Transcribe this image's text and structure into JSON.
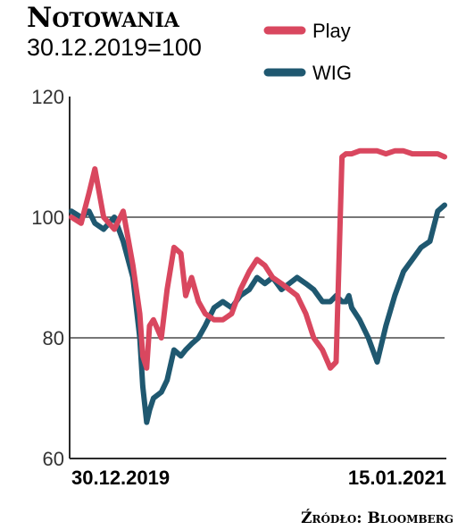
{
  "chart_data": {
    "type": "line",
    "title": "Notowania",
    "subtitle": "30.12.2019=100",
    "source": "Źródło: Bloomberg",
    "ylim": [
      60,
      120
    ],
    "yticks": [
      60,
      80,
      100,
      120
    ],
    "gridlines": [
      80,
      100
    ],
    "x_range": [
      "30.12.2019",
      "15.01.2021"
    ],
    "x_tick_labels": [
      "30.12.2019",
      "15.01.2021"
    ],
    "legend_position": "top-right",
    "colors": {
      "Play": "#d9475f",
      "WIG": "#1f5870"
    },
    "series": [
      {
        "name": "Play",
        "x": [
          "2019-12-30",
          "2020-01-09",
          "2020-01-17",
          "2020-01-23",
          "2020-02-01",
          "2020-02-12",
          "2020-02-21",
          "2020-03-02",
          "2020-03-09",
          "2020-03-12",
          "2020-03-16",
          "2020-03-19",
          "2020-03-23",
          "2020-03-31",
          "2020-04-06",
          "2020-04-13",
          "2020-04-20",
          "2020-04-25",
          "2020-05-01",
          "2020-05-08",
          "2020-05-15",
          "2020-05-24",
          "2020-06-02",
          "2020-06-11",
          "2020-06-20",
          "2020-06-29",
          "2020-07-07",
          "2020-07-15",
          "2020-07-23",
          "2020-08-01",
          "2020-08-09",
          "2020-08-17",
          "2020-08-26",
          "2020-09-03",
          "2020-09-12",
          "2020-09-20",
          "2020-09-26",
          "2020-10-02",
          "2020-10-06",
          "2020-10-09",
          "2020-10-12",
          "2020-10-20",
          "2020-10-29",
          "2020-11-07",
          "2020-11-16",
          "2020-11-25",
          "2020-12-04",
          "2020-12-13",
          "2020-12-22",
          "2020-12-31",
          "2021-01-08",
          "2021-01-15"
        ],
        "values": [
          100,
          99,
          104,
          108,
          100,
          98,
          101,
          92,
          84,
          77,
          75,
          82,
          83,
          80,
          88,
          95,
          94,
          87,
          90,
          86,
          84,
          83,
          83,
          84,
          88,
          91,
          93,
          92,
          90,
          89,
          88,
          87,
          84,
          80,
          78,
          75,
          76,
          110,
          110.5,
          110.5,
          110.5,
          111,
          111,
          111,
          110.5,
          111,
          111,
          110.5,
          110.5,
          110.5,
          110.5,
          110
        ]
      },
      {
        "name": "WIG",
        "x": [
          "2019-12-30",
          "2020-01-09",
          "2020-01-17",
          "2020-01-23",
          "2020-02-01",
          "2020-02-12",
          "2020-02-21",
          "2020-03-02",
          "2020-03-09",
          "2020-03-12",
          "2020-03-16",
          "2020-03-19",
          "2020-03-23",
          "2020-03-31",
          "2020-04-06",
          "2020-04-13",
          "2020-04-20",
          "2020-04-25",
          "2020-05-01",
          "2020-05-08",
          "2020-05-15",
          "2020-05-24",
          "2020-06-02",
          "2020-06-11",
          "2020-06-20",
          "2020-06-29",
          "2020-07-07",
          "2020-07-15",
          "2020-07-23",
          "2020-08-01",
          "2020-08-09",
          "2020-08-17",
          "2020-08-26",
          "2020-09-03",
          "2020-09-12",
          "2020-09-20",
          "2020-09-26",
          "2020-10-02",
          "2020-10-06",
          "2020-10-09",
          "2020-10-12",
          "2020-10-20",
          "2020-10-29",
          "2020-11-07",
          "2020-11-16",
          "2020-11-25",
          "2020-12-04",
          "2020-12-13",
          "2020-12-22",
          "2020-12-31",
          "2021-01-08",
          "2021-01-15"
        ],
        "values": [
          101,
          100,
          101,
          99,
          98,
          100,
          96,
          90,
          80,
          72,
          66,
          68,
          70,
          71,
          73,
          78,
          77,
          78,
          79,
          80,
          82,
          85,
          86,
          85,
          87,
          88,
          90,
          89,
          90,
          88,
          89,
          90,
          89,
          88,
          86,
          86,
          87,
          86,
          86,
          87,
          85,
          83,
          80,
          76,
          82,
          87,
          91,
          93,
          95,
          96,
          101,
          102
        ]
      }
    ]
  }
}
